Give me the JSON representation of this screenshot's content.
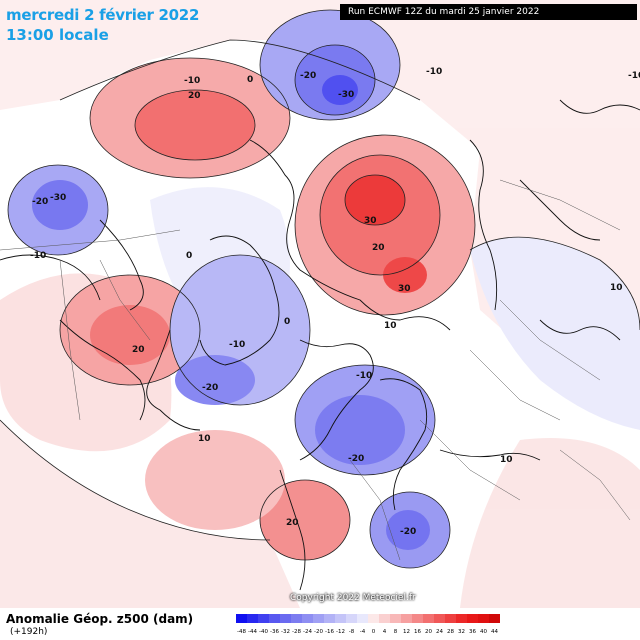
{
  "header": {
    "date": "mercredi 2 février 2022",
    "time": "13:00 locale",
    "run": "Run ECMWF 12Z du mardi 25 janvier 2022"
  },
  "footer": {
    "title": "Anomalie Géop. z500 (dam)",
    "subtitle": "(+192h)",
    "copyright": "Copyright 2022 Meteociel.fr"
  },
  "scale": {
    "labels": [
      "-48",
      "-44",
      "-40",
      "-36",
      "-32",
      "-28",
      "-24",
      "-20",
      "-16",
      "-12",
      "-8",
      "-4",
      "0",
      "4",
      "8",
      "12",
      "16",
      "20",
      "24",
      "28",
      "32",
      "36",
      "40",
      "44"
    ],
    "colors": [
      "#1010f0",
      "#2828f0",
      "#4040f0",
      "#5858f0",
      "#6a6af0",
      "#7c7cf0",
      "#8e8ef2",
      "#a0a0f4",
      "#b2b2f6",
      "#c4c4f8",
      "#d6d6fa",
      "#e8e8fc",
      "#fce8e8",
      "#fad0d0",
      "#f8b8b8",
      "#f6a0a0",
      "#f48888",
      "#f27070",
      "#f05858",
      "#ee4040",
      "#ec2828",
      "#e81818",
      "#e01010",
      "#d00808"
    ]
  },
  "contour_labels": [
    {
      "text": "-20"
    },
    {
      "text": "-30"
    },
    {
      "text": "-10"
    },
    {
      "text": "0"
    },
    {
      "text": "10"
    },
    {
      "text": "20"
    },
    {
      "text": "30"
    }
  ],
  "map_labels": [
    {
      "id": "l1",
      "text": "-10"
    },
    {
      "id": "l2",
      "text": "0"
    },
    {
      "id": "l3",
      "text": "-20"
    },
    {
      "id": "l4",
      "text": "-30"
    },
    {
      "id": "l5",
      "text": "-10"
    },
    {
      "id": "l6",
      "text": "10"
    },
    {
      "id": "l7",
      "text": "20"
    },
    {
      "id": "l8",
      "text": "-20"
    },
    {
      "id": "l9",
      "text": "-30"
    },
    {
      "id": "l10",
      "text": "-10"
    },
    {
      "id": "l11",
      "text": "30"
    },
    {
      "id": "l12",
      "text": "20"
    },
    {
      "id": "l13",
      "text": "30"
    },
    {
      "id": "l14",
      "text": "10"
    },
    {
      "id": "l15",
      "text": "0"
    },
    {
      "id": "l16",
      "text": "-10"
    },
    {
      "id": "l17",
      "text": "20"
    },
    {
      "id": "l18",
      "text": "-20"
    },
    {
      "id": "l19",
      "text": "-10"
    },
    {
      "id": "l20",
      "text": "-20"
    },
    {
      "id": "l21",
      "text": "10"
    },
    {
      "id": "l22",
      "text": "10"
    },
    {
      "id": "l23",
      "text": "20"
    },
    {
      "id": "l24",
      "text": "-20"
    },
    {
      "id": "l25",
      "text": "0"
    },
    {
      "id": "l26",
      "text": "-10"
    },
    {
      "id": "l27",
      "text": "10"
    }
  ]
}
